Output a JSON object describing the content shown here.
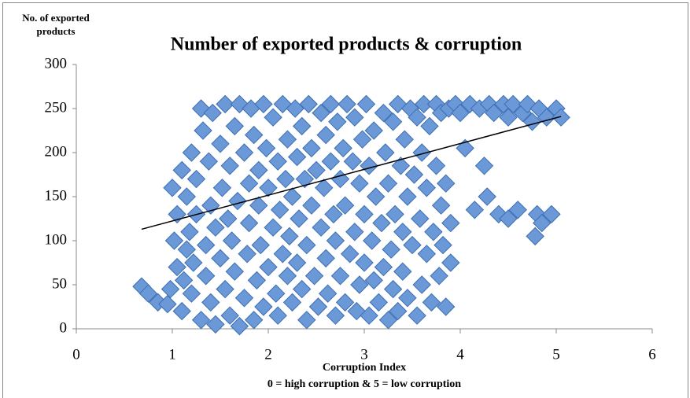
{
  "chart_data": {
    "type": "scatter",
    "title": "Number of exported products & corruption",
    "y_label": "No. of exported products",
    "x_label": "Corruption Index",
    "x_sublabel": "0 = high corruption & 5 = low corruption",
    "color": "#6b98d6",
    "edge_color": "#3d6fb4",
    "grid": false,
    "xlim": [
      0,
      6
    ],
    "xticks": [
      0,
      1,
      2,
      3,
      4,
      5,
      6
    ],
    "ylim": [
      0,
      300
    ],
    "yticks": [
      0,
      50,
      100,
      150,
      200,
      250,
      300
    ],
    "x": [
      0.68,
      0.75,
      0.85,
      0.95,
      0.98,
      1.0,
      1.02,
      1.05,
      1.05,
      1.1,
      1.1,
      1.12,
      1.15,
      1.15,
      1.18,
      1.2,
      1.2,
      1.22,
      1.25,
      1.25,
      1.3,
      1.3,
      1.32,
      1.35,
      1.35,
      1.38,
      1.4,
      1.4,
      1.42,
      1.45,
      1.45,
      1.5,
      1.5,
      1.52,
      1.55,
      1.55,
      1.58,
      1.6,
      1.6,
      1.62,
      1.65,
      1.65,
      1.68,
      1.7,
      1.7,
      1.75,
      1.75,
      1.78,
      1.8,
      1.8,
      1.82,
      1.85,
      1.85,
      1.88,
      1.9,
      1.9,
      1.92,
      1.95,
      1.95,
      1.98,
      2.0,
      2.0,
      2.05,
      2.05,
      2.08,
      2.1,
      2.1,
      2.12,
      2.15,
      2.15,
      2.18,
      2.2,
      2.2,
      2.22,
      2.25,
      2.25,
      2.28,
      2.3,
      2.3,
      2.32,
      2.35,
      2.35,
      2.38,
      2.4,
      2.4,
      2.42,
      2.45,
      2.45,
      2.48,
      2.5,
      2.52,
      2.55,
      2.55,
      2.58,
      2.6,
      2.6,
      2.62,
      2.65,
      2.65,
      2.68,
      2.7,
      2.7,
      2.72,
      2.75,
      2.75,
      2.78,
      2.8,
      2.8,
      2.82,
      2.85,
      2.88,
      2.9,
      2.9,
      2.92,
      2.95,
      2.95,
      2.98,
      3.0,
      3.0,
      3.02,
      3.05,
      3.05,
      3.08,
      3.1,
      3.1,
      3.12,
      3.15,
      3.18,
      3.2,
      3.2,
      3.22,
      3.25,
      3.25,
      3.28,
      3.3,
      3.3,
      3.32,
      3.35,
      3.35,
      3.38,
      3.4,
      3.4,
      3.42,
      3.45,
      3.45,
      3.48,
      3.5,
      3.52,
      3.55,
      3.55,
      3.58,
      3.6,
      3.6,
      3.62,
      3.65,
      3.65,
      3.68,
      3.7,
      3.72,
      3.75,
      3.75,
      3.78,
      3.8,
      3.8,
      3.82,
      3.85,
      3.85,
      3.88,
      3.9,
      3.9,
      3.95,
      4.0,
      4.05,
      4.1,
      4.15,
      4.2,
      4.25,
      4.28,
      4.3,
      4.35,
      4.4,
      4.45,
      4.5,
      4.5,
      4.55,
      4.6,
      4.65,
      4.7,
      4.75,
      4.78,
      4.8,
      4.82,
      4.85,
      4.9,
      4.95,
      5.0,
      5.05
    ],
    "values": [
      48,
      40,
      30,
      28,
      45,
      160,
      100,
      70,
      130,
      180,
      20,
      55,
      90,
      150,
      110,
      200,
      40,
      75,
      170,
      130,
      250,
      10,
      225,
      60,
      95,
      190,
      140,
      30,
      245,
      115,
      5,
      210,
      80,
      160,
      45,
      255,
      125,
      185,
      15,
      100,
      230,
      65,
      145,
      3,
      255,
      200,
      35,
      85,
      165,
      120,
      250,
      10,
      220,
      55,
      180,
      140,
      95,
      255,
      25,
      205,
      70,
      160,
      115,
      240,
      40,
      190,
      15,
      135,
      85,
      255,
      170,
      60,
      215,
      105,
      30,
      150,
      250,
      195,
      75,
      125,
      45,
      230,
      170,
      10,
      95,
      255,
      140,
      205,
      60,
      180,
      25,
      245,
      115,
      160,
      80,
      220,
      40,
      190,
      255,
      130,
      15,
      100,
      235,
      60,
      170,
      205,
      140,
      30,
      255,
      85,
      190,
      110,
      240,
      20,
      165,
      50,
      215,
      75,
      130,
      255,
      185,
      15,
      100,
      225,
      55,
      150,
      30,
      120,
      245,
      70,
      200,
      10,
      165,
      90,
      235,
      45,
      130,
      255,
      20,
      185,
      110,
      65,
      215,
      35,
      150,
      250,
      95,
      175,
      15,
      240,
      125,
      50,
      200,
      255,
      85,
      160,
      230,
      30,
      110,
      185,
      255,
      60,
      140,
      245,
      95,
      25,
      165,
      250,
      75,
      120,
      255,
      245,
      205,
      255,
      135,
      250,
      185,
      150,
      255,
      245,
      130,
      255,
      125,
      240,
      255,
      135,
      245,
      255,
      235,
      105,
      130,
      250,
      120,
      240,
      130,
      250,
      240
    ],
    "trendline": {
      "x": [
        0.68,
        5.05
      ],
      "values": [
        113,
        241
      ],
      "color": "#000000"
    }
  }
}
